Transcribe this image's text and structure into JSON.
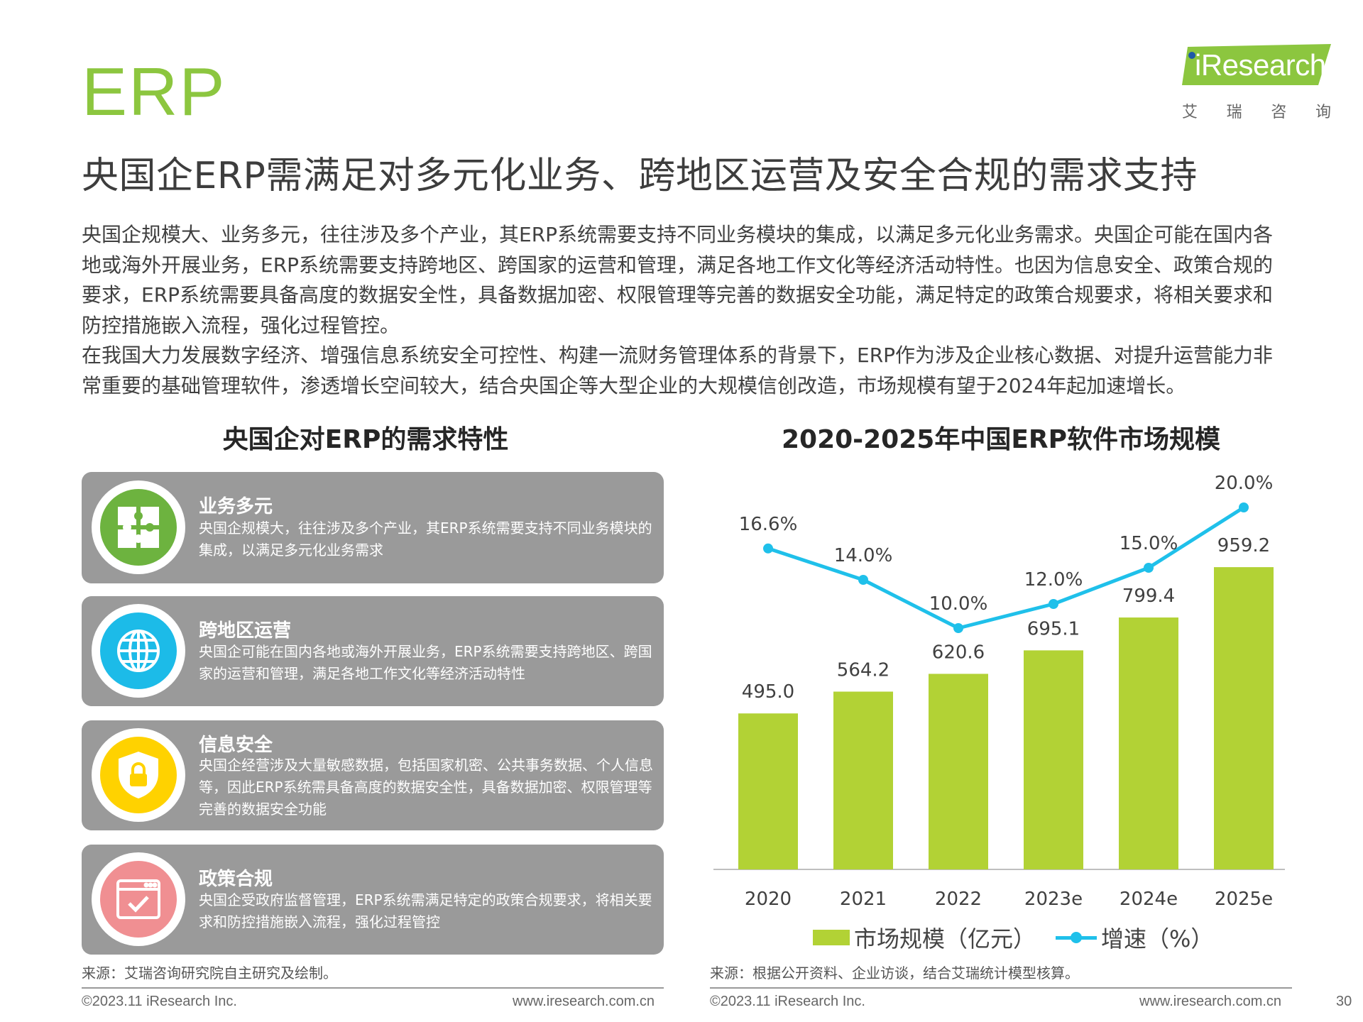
{
  "header": {
    "section": "ERP",
    "logo_text": "iResearch",
    "logo_cn": [
      "艾",
      "瑞",
      "咨",
      "询"
    ],
    "title": "央国企ERP需满足对多元化业务、跨地区运营及安全合规的需求支持"
  },
  "body": {
    "para1": "央国企规模大、业务多元，往往涉及多个产业，其ERP系统需要支持不同业务模块的集成，以满足多元化业务需求。央国企可能在国内各地或海外开展业务，ERP系统需要支持跨地区、跨国家的运营和管理，满足各地工作文化等经济活动特性。也因为信息安全、政策合规的要求，ERP系统需要具备高度的数据安全性，具备数据加密、权限管理等完善的数据安全功能，满足特定的政策合规要求，将相关要求和防控措施嵌入流程，强化过程管控。",
    "para2": "在我国大力发展数字经济、增强信息系统安全可控性、构建一流财务管理体系的背景下，ERP作为涉及企业核心数据、对提升运营能力非常重要的基础管理软件，渗透增长空间较大，结合央国企等大型企业的大规模信创改造，市场规模有望于2024年起加速增长。"
  },
  "left": {
    "title": "央国企对ERP的需求特性",
    "cards": [
      {
        "title": "业务多元",
        "desc": "央国企规模大，往往涉及多个产业，其ERP系统需要支持不同业务模块的集成，以满足多元化业务需求",
        "icon": "puzzle-icon",
        "color": "#6db33f"
      },
      {
        "title": "跨地区运营",
        "desc": "央国企可能在国内各地或海外开展业务，ERP系统需要支持跨地区、跨国家的运营和管理，满足各地工作文化等经济活动特性",
        "icon": "globe-icon",
        "color": "#1cbbe8"
      },
      {
        "title": "信息安全",
        "desc": "央国企经营涉及大量敏感数据，包括国家机密、公共事务数据、个人信息等，因此ERP系统需具备高度的数据安全性，具备数据加密、权限管理等完善的数据安全功能",
        "icon": "shield-lock-icon",
        "color": "#ffd200"
      },
      {
        "title": "政策合规",
        "desc": "央国企受政府监督管理，ERP系统需满足特定的政策合规要求，将相关要求和防控措施嵌入流程，强化过程管控",
        "icon": "checklist-window-icon",
        "color": "#f08f92"
      }
    ],
    "source": "来源：艾瑞咨询研究院自主研究及绘制。"
  },
  "right": {
    "title": "2020-2025年中国ERP软件市场规模",
    "source": "来源：根据公开资料、企业访谈，结合艾瑞统计模型核算。"
  },
  "chart_data": {
    "type": "bar",
    "title": "2020-2025年中国ERP软件市场规模",
    "categories": [
      "2020",
      "2021",
      "2022",
      "2023e",
      "2024e",
      "2025e"
    ],
    "series": [
      {
        "name": "市场规模（亿元）",
        "type": "bar",
        "values": [
          495.0,
          564.2,
          620.6,
          695.1,
          799.4,
          959.2
        ],
        "labels": [
          "495.0",
          "564.2",
          "620.6",
          "695.1",
          "799.4",
          "959.2"
        ],
        "color": "#b2d235"
      },
      {
        "name": "增速（%）",
        "type": "line",
        "values": [
          16.6,
          14.0,
          10.0,
          12.0,
          15.0,
          20.0
        ],
        "labels": [
          "16.6%",
          "14.0%",
          "10.0%",
          "12.0%",
          "15.0%",
          "20.0%"
        ],
        "color": "#1fc0ea"
      }
    ],
    "legend": [
      "市场规模（亿元）",
      "增速（%）"
    ],
    "legend_position": "bottom"
  },
  "footer": {
    "copyright": "©2023.11 iResearch Inc.",
    "url": "www.iresearch.com.cn",
    "page": "30"
  }
}
